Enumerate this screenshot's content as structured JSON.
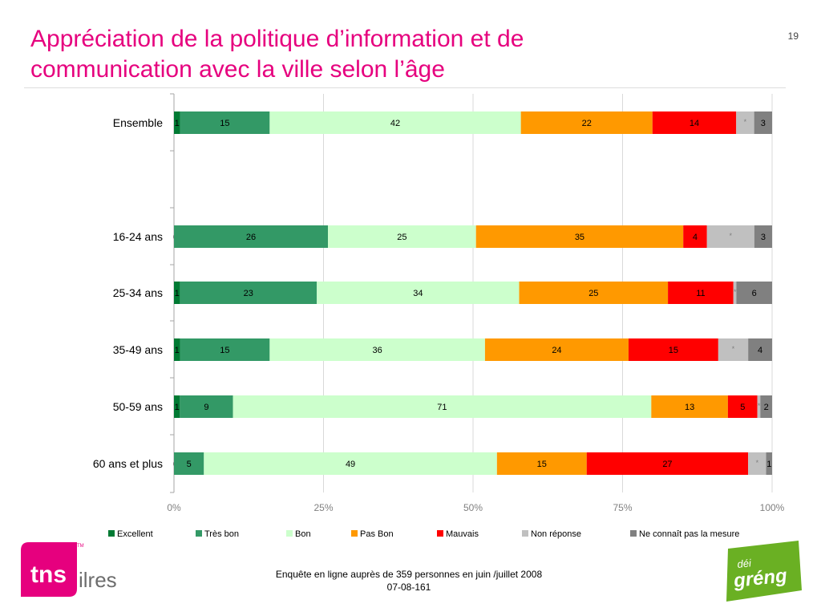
{
  "page": {
    "title_line1": "Appréciation de la politique d’information et de",
    "title_line2": "communication avec la ville  selon l’âge",
    "page_number": "19",
    "footer_line1": "Enquête en ligne auprès de 359 personnes en juin /juillet 2008",
    "footer_line2": "07-08-161",
    "logo_left": {
      "mark": "tns",
      "suffix": "ilres",
      "tm": "TM"
    },
    "logo_right": {
      "top": "déi",
      "main": "gréng"
    }
  },
  "colors": {
    "title": "#e6007e",
    "tns_pink": "#e6007e",
    "greng_green": "#6ab023"
  },
  "chart_data": {
    "type": "bar",
    "orientation": "horizontal",
    "stacked": true,
    "percent_stacked": true,
    "title": "",
    "xlabel": "",
    "ylabel": "",
    "xlim": [
      0,
      100
    ],
    "x_ticks": [
      "0%",
      "25%",
      "50%",
      "75%",
      "100%"
    ],
    "grid": true,
    "legend_position": "bottom",
    "categories": [
      "Ensemble",
      "",
      "16-24 ans",
      "25-34 ans",
      "35-49 ans",
      "50-59 ans",
      "60 ans et plus"
    ],
    "series": [
      {
        "name": "Excellent",
        "color": "#007a33",
        "values": [
          1,
          null,
          0,
          1,
          1,
          1,
          0
        ],
        "labels": [
          "1",
          "",
          "0",
          "1",
          "1",
          "1",
          "0"
        ]
      },
      {
        "name": "Très bon",
        "color": "#339966",
        "values": [
          15,
          null,
          26,
          23,
          15,
          9,
          5
        ],
        "labels": [
          "15",
          "",
          "26",
          "23",
          "15",
          "9",
          "5"
        ]
      },
      {
        "name": "Bon",
        "color": "#ccffcc",
        "values": [
          42,
          null,
          25,
          34,
          36,
          71,
          49
        ],
        "labels": [
          "42",
          "",
          "25",
          "34",
          "36",
          "71",
          "49"
        ]
      },
      {
        "name": "Pas Bon",
        "color": "#ff9900",
        "values": [
          22,
          null,
          35,
          25,
          24,
          13,
          15
        ],
        "labels": [
          "22",
          "",
          "35",
          "25",
          "24",
          "13",
          "15"
        ]
      },
      {
        "name": "Mauvais",
        "color": "#ff0000",
        "values": [
          14,
          null,
          4,
          11,
          15,
          5,
          27
        ],
        "labels": [
          "14",
          "",
          "4",
          "11",
          "15",
          "5",
          "27"
        ]
      },
      {
        "name": "Non réponse",
        "color": "#c0c0c0",
        "values": [
          3,
          null,
          8,
          0.5,
          5,
          0.5,
          3
        ],
        "labels": [
          "*",
          "",
          "*",
          "*",
          "*",
          "*",
          "*"
        ]
      },
      {
        "name": "Ne connaît pas la mesure",
        "color": "#808080",
        "values": [
          3,
          null,
          3,
          6,
          4,
          2,
          1
        ],
        "labels": [
          "3",
          "",
          "3",
          "6",
          "4",
          "2",
          "1"
        ]
      }
    ]
  }
}
